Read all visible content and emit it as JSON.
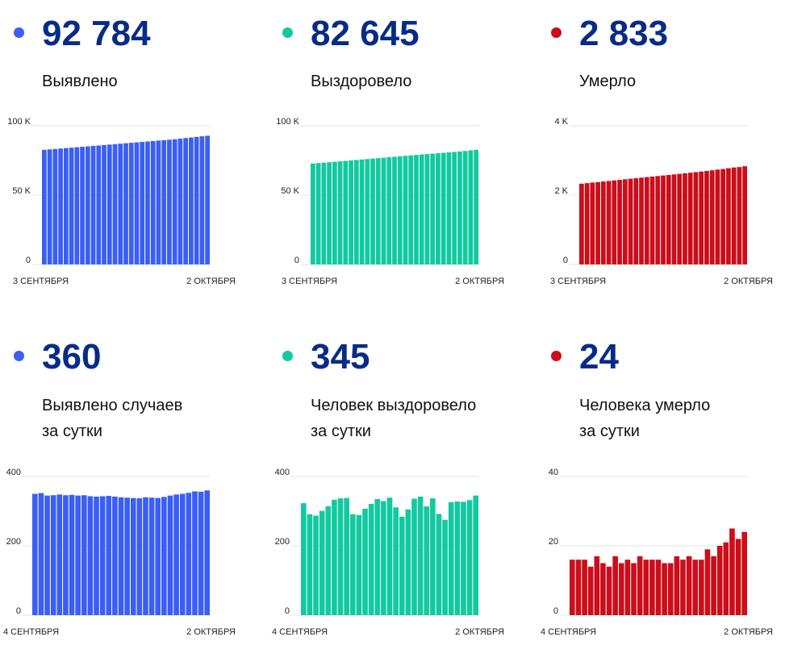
{
  "panels": [
    {
      "value": "92 784",
      "label_lines": [
        "Выявлено"
      ],
      "color": "#3b5ef5",
      "chart_data": {
        "type": "bar",
        "x_start_label": "3 СЕНТЯБРЯ",
        "x_end_label": "2 ОКТЯБРЯ",
        "y_ticks": [
          {
            "value": 0,
            "label": "0"
          },
          {
            "value": 50000,
            "label": "50 K"
          },
          {
            "value": 100000,
            "label": "100 K"
          }
        ],
        "ylim": [
          0,
          100000
        ],
        "values": [
          82645,
          82955,
          83275,
          83590,
          83900,
          84210,
          84525,
          84840,
          85160,
          85480,
          85800,
          86120,
          86440,
          86760,
          87080,
          87400,
          87720,
          88040,
          88360,
          88680,
          89000,
          89320,
          89640,
          89960,
          90320,
          90730,
          91140,
          91560,
          91990,
          92424,
          92784
        ]
      }
    },
    {
      "value": "82 645",
      "label_lines": [
        "Выздоровело"
      ],
      "color": "#12c9a0",
      "chart_data": {
        "type": "bar",
        "x_start_label": "3 СЕНТЯБРЯ",
        "x_end_label": "2 ОКТЯБРЯ",
        "y_ticks": [
          {
            "value": 0,
            "label": "0"
          },
          {
            "value": 50000,
            "label": "50 K"
          },
          {
            "value": 100000,
            "label": "100 K"
          }
        ],
        "ylim": [
          0,
          100000
        ],
        "values": [
          72800,
          73120,
          73410,
          73720,
          74040,
          74370,
          74700,
          75030,
          75370,
          75710,
          76030,
          76320,
          76640,
          76980,
          77320,
          77660,
          78000,
          78330,
          78640,
          78960,
          79300,
          79600,
          79890,
          80180,
          80500,
          80820,
          81150,
          81480,
          81820,
          82300,
          82645
        ]
      }
    },
    {
      "value": "2 833",
      "label_lines": [
        "Умерло"
      ],
      "color": "#cc0d1a",
      "chart_data": {
        "type": "bar",
        "x_start_label": "3 СЕНТЯБРЯ",
        "x_end_label": "2 ОКТЯБРЯ",
        "y_ticks": [
          {
            "value": 0,
            "label": "0"
          },
          {
            "value": 2000,
            "label": "2 K"
          },
          {
            "value": 4000,
            "label": "4 K"
          }
        ],
        "ylim": [
          0,
          4000
        ],
        "values": [
          2330,
          2346,
          2362,
          2376,
          2393,
          2408,
          2425,
          2440,
          2457,
          2472,
          2487,
          2504,
          2520,
          2535,
          2551,
          2566,
          2581,
          2598,
          2614,
          2630,
          2645,
          2663,
          2680,
          2697,
          2716,
          2736,
          2753,
          2775,
          2797,
          2809,
          2833
        ]
      }
    },
    {
      "value": "360",
      "label_lines": [
        "Выявлено случаев",
        "за сутки"
      ],
      "color": "#3b5ef5",
      "chart_data": {
        "type": "bar",
        "x_start_label": "4 СЕНТЯБРЯ",
        "x_end_label": "2 ОКТЯБРЯ",
        "y_ticks": [
          {
            "value": 0,
            "label": "0"
          },
          {
            "value": 200,
            "label": "200"
          },
          {
            "value": 400,
            "label": "400"
          }
        ],
        "ylim": [
          0,
          400
        ],
        "values": [
          350,
          352,
          345,
          346,
          348,
          346,
          347,
          345,
          346,
          343,
          342,
          343,
          344,
          342,
          340,
          339,
          338,
          337,
          340,
          339,
          338,
          341,
          345,
          348,
          350,
          353,
          357,
          356,
          360
        ]
      }
    },
    {
      "value": "345",
      "label_lines": [
        "Человек выздоровело",
        "за сутки"
      ],
      "color": "#12c9a0",
      "chart_data": {
        "type": "bar",
        "x_start_label": "4 СЕНТЯБРЯ",
        "x_end_label": "2 ОКТЯБРЯ",
        "y_ticks": [
          {
            "value": 0,
            "label": "0"
          },
          {
            "value": 200,
            "label": "200"
          },
          {
            "value": 400,
            "label": "400"
          }
        ],
        "ylim": [
          0,
          400
        ],
        "values": [
          323,
          291,
          287,
          301,
          314,
          333,
          337,
          338,
          291,
          289,
          307,
          321,
          335,
          329,
          339,
          311,
          284,
          305,
          336,
          342,
          314,
          337,
          292,
          275,
          326,
          328,
          327,
          332,
          345
        ]
      }
    },
    {
      "value": "24",
      "label_lines": [
        "Человека умерло",
        "за сутки"
      ],
      "color": "#cc0d1a",
      "chart_data": {
        "type": "bar",
        "x_start_label": "4 СЕНТЯБРЯ",
        "x_end_label": "2 ОКТЯБРЯ",
        "y_ticks": [
          {
            "value": 0,
            "label": "0"
          },
          {
            "value": 20,
            "label": "20"
          },
          {
            "value": 40,
            "label": "40"
          }
        ],
        "ylim": [
          0,
          40
        ],
        "values": [
          16,
          16,
          16,
          14,
          17,
          15,
          14,
          17,
          15,
          16,
          15,
          17,
          16,
          16,
          16,
          15,
          15,
          17,
          16,
          17,
          16,
          16,
          19,
          17,
          20,
          21,
          25,
          22,
          24
        ]
      }
    }
  ]
}
